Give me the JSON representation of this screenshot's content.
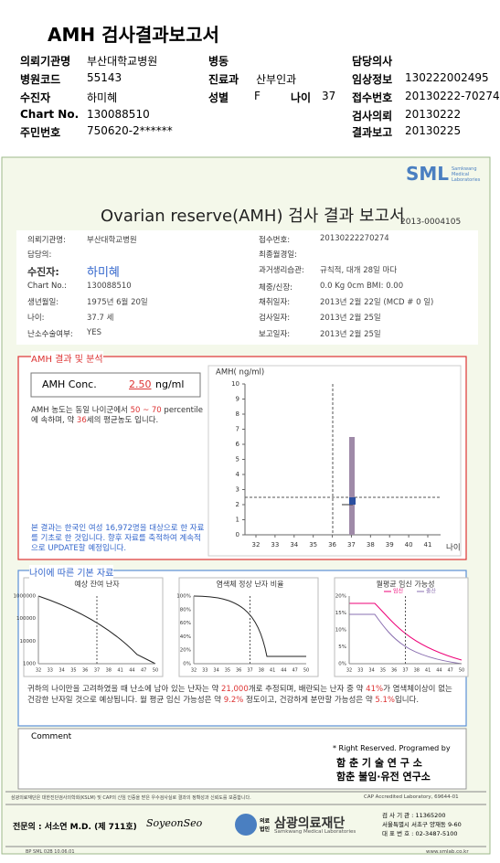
{
  "header": {
    "title": "AMH 검사결과보고서",
    "fields": [
      {
        "label": "의뢰기관명",
        "value": "부산대학교병원"
      },
      {
        "label": "병동"
      },
      {
        "label": "담당의사"
      },
      {
        "label": "병원코드",
        "value": "55143"
      },
      {
        "label": "진료과",
        "value": "산부인과"
      },
      {
        "label": "임상정보",
        "value": "130222002495"
      },
      {
        "label": "수진자",
        "value": "하미혜"
      },
      {
        "label": "성별",
        "value": "F"
      },
      {
        "label": "나이",
        "value": "37"
      },
      {
        "label": "접수번호",
        "value": "20130222-70274"
      },
      {
        "label": "Chart No.",
        "value": "130088510"
      },
      {
        "label": "검사의뢰",
        "value": "20130222"
      },
      {
        "label": "주민번호",
        "value": "750620-2******"
      },
      {
        "label": "결과보고",
        "value": "20130225"
      }
    ]
  },
  "report": {
    "logo": "SML",
    "logo_sub": "Samkwang Medical Laboratories",
    "title": "Ovarian reserve(AMH) 검사 결과 보고서",
    "number": "2013-0004105",
    "left": [
      {
        "label": "의뢰기관명:",
        "value": "부산대학교병원"
      },
      {
        "label": "담당의:"
      },
      {
        "label": "수진자:",
        "value": "하미혜"
      },
      {
        "label": "Chart No.:",
        "value": "130088510"
      },
      {
        "label": "생년월일:",
        "value": "1975년 6월 20일"
      },
      {
        "label": "나이:",
        "value": "37.7 세"
      },
      {
        "label": "난소수술여부:",
        "value": "YES"
      }
    ],
    "right": [
      {
        "label": "접수번호:",
        "value": "20130222270274"
      },
      {
        "label": "최종월경일:"
      },
      {
        "label": "과거생리습관:",
        "value": "규칙적, 대개 28일 마다"
      },
      {
        "label": "체중/신장:",
        "value": "0.0 Kg      0cm    BMI:  0.00"
      },
      {
        "label": "채취일자:",
        "value": "2013년 2월 22일  (MCD #  0 일)"
      },
      {
        "label": "검사일자:",
        "value": "2013년 2월 25일"
      },
      {
        "label": "보고일자:",
        "value": "2013년 2월 25일"
      }
    ]
  },
  "analysis": {
    "title": "AMH 결과 및 분석",
    "conc_label": "AMH Conc.",
    "conc_value": "2.50",
    "conc_unit": "ng/ml",
    "interpretation": [
      "AMH 농도는 동일 나이군에서 ",
      "50 ~ 70",
      " percentile에 속하며, 약 ",
      "36",
      "세의 평균농도 입니다."
    ],
    "note": "본 결과는 한국인 여성 16,972명을 대상으로 한 자료를 기초로 한 것입니다. 향후 자료를 축적하여 계속적으로 UPDATE할 예정입니다.",
    "chart": {
      "y_label": "AMH( ng/ml)",
      "yticks": [
        0,
        1,
        2,
        3,
        4,
        5,
        6,
        7,
        8,
        9,
        10
      ],
      "xticks": [
        32,
        33,
        34,
        35,
        36,
        37,
        38,
        39,
        40,
        41
      ],
      "x_label": "나이"
    }
  },
  "basic": {
    "title": "나이에 따른 기본 자료",
    "xticks": [
      32,
      33,
      34,
      35,
      36,
      37,
      38,
      41,
      44,
      47,
      50
    ],
    "charts": [
      {
        "title": "예상 잔여 난자",
        "yticks": [
          1000000,
          100000,
          10000,
          1000
        ]
      },
      {
        "title": "염색체 정상 난자 비율",
        "yticks": [
          "100%",
          "80%",
          "60%",
          "40%",
          "20%",
          "0%"
        ]
      },
      {
        "title": "월평균 임신 가능성",
        "legend": [
          "임신",
          "출산"
        ],
        "yticks": [
          "20%",
          "15%",
          "10%",
          "5%",
          "0%"
        ]
      }
    ],
    "summary": [
      "귀하의 나이만을 고려하였을 때 난소에 남아 있는 난자는 약 ",
      "21,000",
      "개로 추정되며, 배란되는 난자 중 약 ",
      "41%",
      "가 염색체이상이 없는 건강한 난자일 것으로 예상됩니다. 월 평균 임신 가능성은 약 ",
      "9.2%",
      " 정도이고, 건강하게 분만할 가능성은 약 ",
      "5.1%",
      "입니다."
    ]
  },
  "comment": {
    "label": "Comment",
    "rights": "* Right Reserved. Programed by",
    "lab1": "함 춘 기 술 연 구 소",
    "lab2": "함춘 불임·유전 연구소"
  },
  "footer": {
    "notice": "삼광의료재단은 대한진단검사의학회(KSLM) 및 CAP의 신임 인증을 받은 우수검사실로 결과의 정확성과 신뢰도를 보증합니다.",
    "cap": "CAP Accredited Laboratory, 69644-01",
    "doctor": "전문의 : 서소연 M.D. (제 711호)",
    "signature": "SoyeonSeo",
    "org_prefix": "의료법인",
    "org": "삼광의료재단",
    "org_en": "Samkwang Medical Laboratories",
    "info": [
      "검 사 기 관 : 11365200",
      "서울특별시 서초구 양재동 9-60",
      "대 표 번 호 : 02-3487-5100"
    ],
    "form": "BP SML 02B 10.06.01",
    "url": "www.smlab.co.kr"
  }
}
